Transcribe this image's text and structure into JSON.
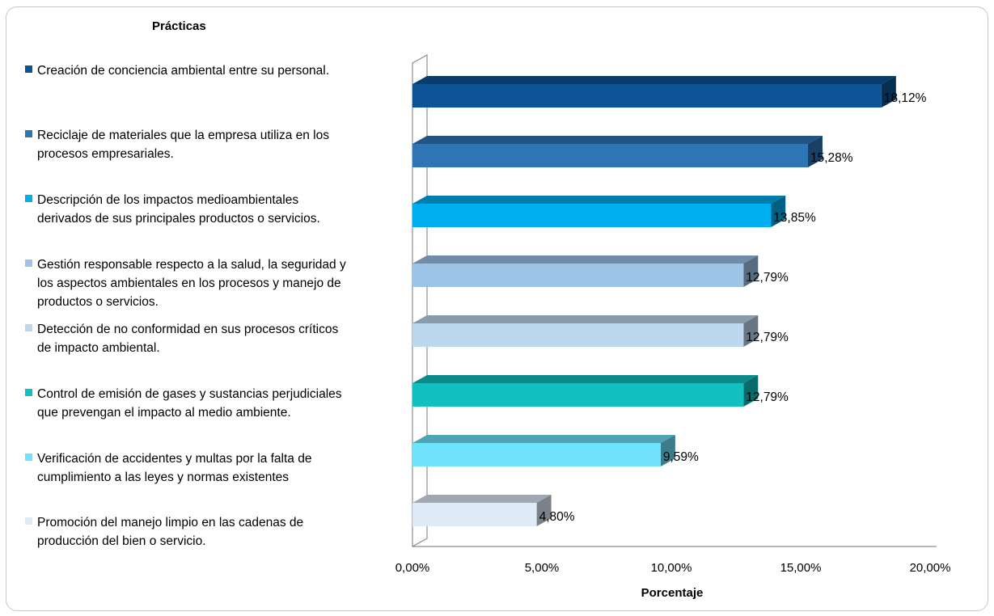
{
  "chart_data": {
    "type": "bar",
    "orientation": "horizontal",
    "style": "3d",
    "legend_title": "Prácticas",
    "xlabel": "Porcentaje",
    "xlim": [
      0,
      20
    ],
    "x_ticks": [
      "0,00%",
      "5,00%",
      "10,00%",
      "15,00%",
      "20,00%"
    ],
    "legend_position": "left",
    "categories": [
      "Creación de conciencia ambiental entre su personal.",
      "Reciclaje de materiales que la empresa utiliza en los\nprocesos empresariales.",
      "Descripción de los impactos medioambientales\nderivados de sus principales productos o servicios.",
      "Gestión responsable respecto a la salud, la seguridad y\nlos aspectos ambientales en los procesos y manejo de\nproductos o servicios.",
      "Detección de no conformidad en sus procesos críticos\nde impacto ambiental.",
      "Control de emisión de gases y sustancias perjudiciales\nque prevengan el impacto al medio ambiente.",
      "Verificación de accidentes y multas por la falta de\ncumplimiento a las leyes y normas existentes",
      "Promoción del manejo limpio en las cadenas de\nproducción del bien o servicio."
    ],
    "values": [
      18.12,
      15.28,
      13.85,
      12.79,
      12.79,
      12.79,
      9.59,
      4.8
    ],
    "value_labels": [
      "18,12%",
      "15,28%",
      "13,85%",
      "12,79%",
      "12,79%",
      "12,79%",
      "9,59%",
      "4,80%"
    ],
    "colors": [
      "#0b5394",
      "#2e75b6",
      "#00aeef",
      "#9dc3e6",
      "#bdd7ee",
      "#12c0c0",
      "#6fe3fb",
      "#deebf7"
    ]
  }
}
